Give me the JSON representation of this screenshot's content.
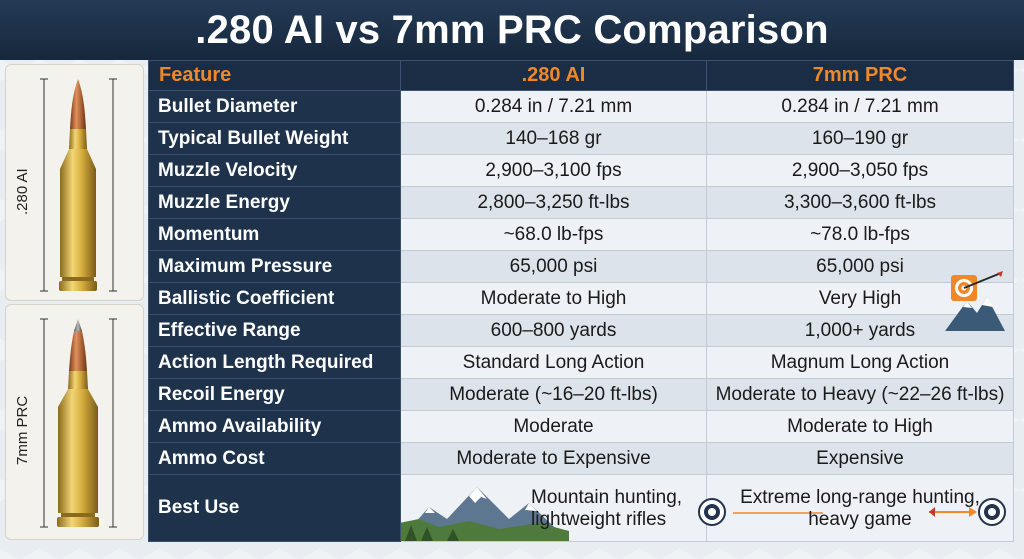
{
  "title": ".280 AI vs 7mm PRC Comparison",
  "side": {
    "top_label": ".280 AI",
    "bottom_label": "7mm PRC"
  },
  "table": {
    "headers": [
      "Feature",
      ".280 AI",
      "7mm PRC"
    ],
    "rows": [
      {
        "feature": "Bullet Diameter",
        "a": "0.284 in / 7.21 mm",
        "b": "0.284 in / 7.21 mm"
      },
      {
        "feature": "Typical Bullet Weight",
        "a": "140–168 gr",
        "b": "160–190 gr"
      },
      {
        "feature": "Muzzle Velocity",
        "a": "2,900–3,100 fps",
        "b": "2,900–3,050 fps"
      },
      {
        "feature": "Muzzle Energy",
        "a": "2,800–3,250 ft-lbs",
        "b": "3,300–3,600 ft-lbs"
      },
      {
        "feature": "Momentum",
        "a": "~68.0 lb-fps",
        "b": "~78.0 lb-fps"
      },
      {
        "feature": "Maximum Pressure",
        "a": "65,000 psi",
        "b": "65,000 psi"
      },
      {
        "feature": "Ballistic Coefficient",
        "a": "Moderate to High",
        "b": "Very High"
      },
      {
        "feature": "Effective Range",
        "a": "600–800 yards",
        "b": "1,000+ yards"
      },
      {
        "feature": "Action Length Required",
        "a": "Standard Long Action",
        "b": "Magnum Long Action"
      },
      {
        "feature": "Recoil Energy",
        "a": "Moderate (~16–20 ft-lbs)",
        "b": "Moderate to Heavy (~22–26 ft-lbs)"
      },
      {
        "feature": "Ammo Availability",
        "a": "Moderate",
        "b": "Moderate to High"
      },
      {
        "feature": "Ammo Cost",
        "a": "Moderate to Expensive",
        "b": "Expensive"
      }
    ],
    "best_use": {
      "feature": "Best Use",
      "a_line1": "Mountain hunting,",
      "a_line2": "lightweight rifles",
      "b_line1": "Extreme long-range hunting,",
      "b_line2": "heavy game"
    }
  },
  "icons": [
    "cartridge-280ai-icon",
    "cartridge-7mmprc-icon",
    "mountain-target-icon",
    "mountain-landscape-icon",
    "target-icon",
    "arrow-icon"
  ],
  "colors": {
    "title_bg": "#1a2d44",
    "header_text": "#f0882a",
    "feature_bg": "#1e324b",
    "row_light": "#eef1f5",
    "row_dark": "#dde3ea"
  }
}
